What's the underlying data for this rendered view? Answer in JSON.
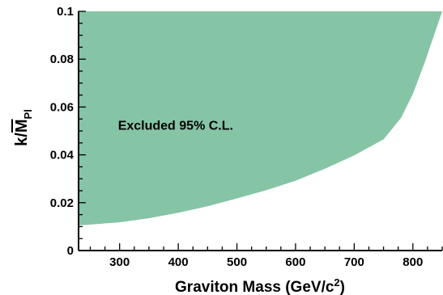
{
  "chart_data": {
    "type": "area",
    "title": "",
    "xlabel": "Graviton Mass (GeV/c",
    "xlabel_superscript": "2",
    "xlabel_suffix": ")",
    "ylabel": "k/M",
    "ylabel_subscript": "Pl",
    "xlim": [
      230,
      850
    ],
    "ylim": [
      0,
      0.1
    ],
    "x_ticks": [
      300,
      400,
      500,
      600,
      700,
      800
    ],
    "x_tick_labels": [
      "300",
      "400",
      "500",
      "600",
      "700",
      "800"
    ],
    "y_ticks": [
      0,
      0.02,
      0.04,
      0.06,
      0.08,
      0.1
    ],
    "y_tick_labels": [
      "0",
      "0.02",
      "0.04",
      "0.06",
      "0.08",
      "0.1"
    ],
    "grid": false,
    "fill_color": "#86c4a6",
    "series": [
      {
        "name": "Excluded 95% C.L.",
        "x": [
          230,
          300,
          350,
          400,
          450,
          500,
          550,
          600,
          650,
          700,
          750,
          780,
          800,
          820,
          850
        ],
        "y": [
          0.0105,
          0.0118,
          0.0135,
          0.0158,
          0.0185,
          0.0218,
          0.0252,
          0.0292,
          0.0342,
          0.0398,
          0.0465,
          0.0555,
          0.0655,
          0.0785,
          0.1
        ],
        "upper": 0.1
      }
    ],
    "annotations": [
      {
        "text": "Excluded 95% C.L.",
        "x": 300,
        "y": 0.0505
      }
    ]
  }
}
